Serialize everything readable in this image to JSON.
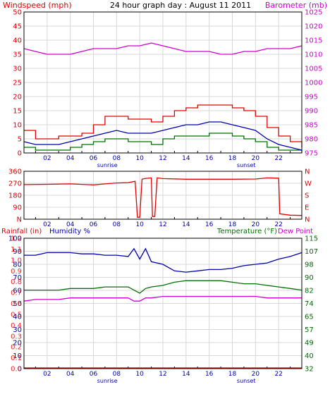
{
  "title": "24 hour graph day : August 11 2011",
  "colors": {
    "background": "#ffffff",
    "frame": "#000000",
    "grid": "#d8d8d8",
    "red": "#e00000",
    "blue": "#0000b0",
    "green": "#007000",
    "magenta": "#d000d0"
  },
  "chart_data": [
    {
      "type": "line",
      "left_label": "Windspeed (mph)",
      "right_label": "Barometer (mb)",
      "left_ticks": [
        "0",
        "5",
        "10",
        "15",
        "20",
        "25",
        "30",
        "35",
        "40",
        "45",
        "50"
      ],
      "right_ticks": [
        "975",
        "980",
        "985",
        "990",
        "995",
        "1000",
        "1005",
        "1010",
        "1015",
        "1020",
        "1025"
      ],
      "ylim_left": [
        0,
        50
      ],
      "ylim_right": [
        975,
        1025
      ],
      "x_ticks": [
        "02",
        "04",
        "06",
        "08",
        "10",
        "12",
        "14",
        "16",
        "18",
        "20",
        "22"
      ],
      "x_annotations": [
        "sunrise",
        "sunset"
      ],
      "grid": true,
      "x": [
        0,
        1,
        2,
        3,
        4,
        5,
        6,
        7,
        8,
        9,
        10,
        11,
        12,
        13,
        14,
        15,
        16,
        17,
        18,
        19,
        20,
        21,
        22,
        23,
        24
      ],
      "series": [
        {
          "name": "Windspeed (mph)",
          "values": [
            8,
            5,
            5,
            6,
            6,
            7,
            10,
            13,
            13,
            12,
            12,
            11,
            13,
            15,
            16,
            17,
            17,
            17,
            16,
            15,
            13,
            9,
            6,
            4,
            2
          ]
        },
        {
          "name": "Barometer (mb)",
          "values": [
            1012,
            1011,
            1010,
            1010,
            1010,
            1011,
            1012,
            1012,
            1012,
            1013,
            1013,
            1014,
            1013,
            1012,
            1011,
            1011,
            1011,
            1010,
            1010,
            1011,
            1011,
            1012,
            1012,
            1012,
            1013
          ]
        },
        {
          "values": [
            4,
            3,
            3,
            3,
            4,
            5,
            6,
            7,
            8,
            7,
            7,
            7,
            8,
            9,
            10,
            10,
            11,
            11,
            10,
            9,
            8,
            5,
            3,
            2,
            1
          ]
        },
        {
          "values": [
            2,
            1,
            1,
            1,
            2,
            3,
            4,
            5,
            5,
            4,
            4,
            3,
            5,
            6,
            6,
            6,
            7,
            7,
            6,
            5,
            4,
            2,
            1,
            1,
            0
          ]
        }
      ]
    },
    {
      "type": "line",
      "left_ticks": [
        "N",
        "90",
        "180",
        "270",
        "360"
      ],
      "right_ticks": [
        "N",
        "E",
        "S",
        "W",
        "N"
      ],
      "ylim": [
        0,
        360
      ],
      "x_ticks": [
        "02",
        "04",
        "06",
        "08",
        "10",
        "12",
        "14",
        "16",
        "18",
        "20",
        "22"
      ],
      "grid": true,
      "x": [
        0,
        2,
        4,
        6,
        7,
        8,
        9,
        9.6,
        9.8,
        10,
        10.2,
        10.4,
        11,
        11.1,
        11.3,
        11.5,
        12,
        14,
        16,
        18,
        20,
        21,
        22,
        22.1,
        23,
        24
      ],
      "series": [
        {
          "values": [
            260,
            262,
            265,
            258,
            265,
            272,
            275,
            285,
            15,
            15,
            300,
            305,
            310,
            20,
            20,
            310,
            305,
            300,
            300,
            300,
            302,
            310,
            308,
            40,
            30,
            28
          ]
        }
      ]
    },
    {
      "type": "line",
      "left_label": "Rainfall (in)",
      "left_label_2": "Humidity %",
      "right_label": "Temperature (°F)",
      "right_label_2": "Dew Point",
      "rain_ticks": [
        "0.0",
        "0.1",
        "0.2",
        "0.3",
        "0.4",
        "0.5",
        "0.6",
        "0.7",
        "0.8",
        "0.9",
        "1.0",
        "1.1",
        "1.2"
      ],
      "humidity_ticks": [
        "0",
        "10",
        "20",
        "30",
        "40",
        "50",
        "60",
        "70",
        "80",
        "90",
        "100"
      ],
      "temp_ticks": [
        "32",
        "40",
        "49",
        "57",
        "65",
        "74",
        "82",
        "90",
        "98",
        "107",
        "115"
      ],
      "ylim_humidity": [
        0,
        100
      ],
      "ylim_temp": [
        32,
        115
      ],
      "x_ticks": [
        "02",
        "04",
        "06",
        "08",
        "10",
        "12",
        "14",
        "16",
        "18",
        "20",
        "22"
      ],
      "x_annotations": [
        "sunrise",
        "sunset"
      ],
      "grid": true,
      "x": [
        0,
        1,
        2,
        3,
        4,
        5,
        6,
        7,
        8,
        9,
        9.5,
        10,
        10.5,
        11,
        12,
        13,
        14,
        15,
        16,
        17,
        18,
        19,
        20,
        21,
        22,
        23,
        24
      ],
      "series": [
        {
          "name": "Humidity %",
          "values": [
            87,
            87,
            89,
            89,
            89,
            88,
            88,
            87,
            87,
            86,
            92,
            84,
            92,
            82,
            80,
            75,
            74,
            75,
            76,
            76,
            77,
            79,
            80,
            81,
            84,
            86,
            89
          ]
        },
        {
          "name": "Temperature (°F)",
          "values": [
            82,
            82,
            82,
            82,
            83,
            83,
            83,
            84,
            84,
            84,
            82,
            80,
            83,
            84,
            85,
            87,
            88,
            88,
            88,
            88,
            87,
            86,
            86,
            85,
            84,
            83,
            82
          ]
        },
        {
          "name": "Dew Point",
          "values": [
            75,
            76,
            76,
            76,
            77,
            77,
            77,
            77,
            77,
            77,
            75,
            75,
            77,
            77,
            78,
            78,
            78,
            78,
            78,
            78,
            78,
            78,
            78,
            77,
            77,
            77,
            77
          ]
        },
        {
          "name": "Rainfall (in)",
          "values": [
            0,
            0,
            0,
            0,
            0,
            0,
            0,
            0,
            0,
            0,
            0,
            0,
            0,
            0,
            0,
            0,
            0,
            0,
            0,
            0,
            0,
            0,
            0,
            0,
            0,
            0,
            0
          ]
        }
      ]
    }
  ]
}
